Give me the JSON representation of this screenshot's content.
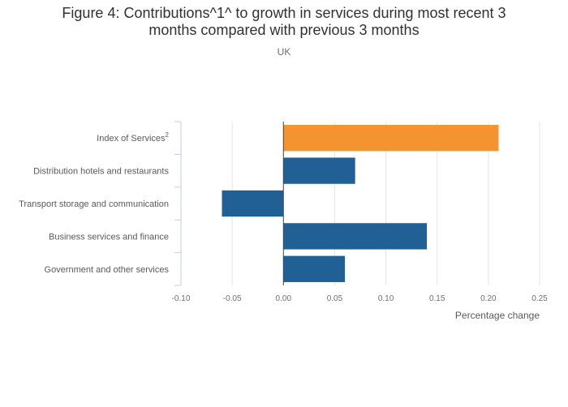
{
  "title_line1": "Figure 4: Contributions^1^ to growth in services during most recent 3",
  "title_line2": "months compared with previous 3 months",
  "subtitle": "UK",
  "chart_data": {
    "type": "bar",
    "orientation": "horizontal",
    "categories": [
      "Index of Services",
      "Distribution hotels and restaurants",
      "Transport storage and communication",
      "Business services and finance",
      "Government and other services"
    ],
    "category_superscripts": [
      "2",
      "",
      "",
      "",
      ""
    ],
    "values": [
      0.21,
      0.07,
      -0.06,
      0.14,
      0.06
    ],
    "bar_colors": [
      "#f39431",
      "#206095",
      "#206095",
      "#206095",
      "#206095"
    ],
    "xlabel": "Percentage change",
    "xlim": [
      -0.1,
      0.25
    ],
    "xticks": [
      "-0.10",
      "-0.05",
      "0.00",
      "0.05",
      "0.10",
      "0.15",
      "0.20",
      "0.25"
    ],
    "grid": true
  }
}
